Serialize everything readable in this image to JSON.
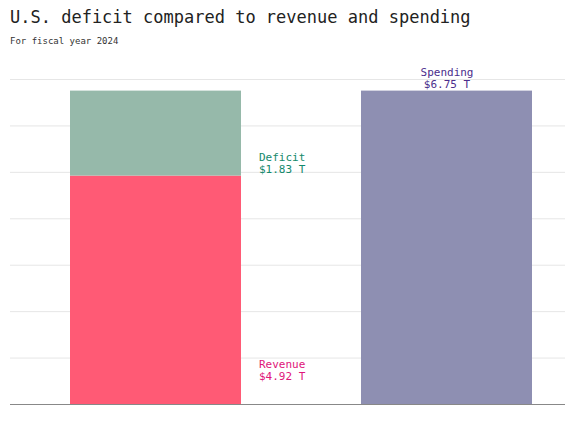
{
  "chart_data": {
    "type": "bar",
    "title": "U.S. deficit compared to revenue and spending",
    "subtitle": "For fiscal year 2024",
    "categories": [
      null,
      null
    ],
    "series": [
      {
        "name": "Revenue",
        "color": "#ff5a75",
        "values": [
          4.92,
          null
        ],
        "value_labels": [
          "$4.92 T",
          null
        ]
      },
      {
        "name": "Deficit",
        "color": "#96b9aa",
        "values": [
          1.83,
          null
        ],
        "value_labels": [
          "$1.83 T",
          null
        ]
      },
      {
        "name": "Spending",
        "color": "#8e8fb2",
        "values": [
          null,
          6.75
        ],
        "value_labels": [
          null,
          "$6.75 T"
        ]
      }
    ],
    "stacked": true,
    "data_labels": true,
    "ylim": [
      0,
      7
    ],
    "yticks": [
      0,
      1,
      2,
      3,
      4,
      5,
      6,
      7
    ],
    "grid": true,
    "tick_labels": false
  }
}
